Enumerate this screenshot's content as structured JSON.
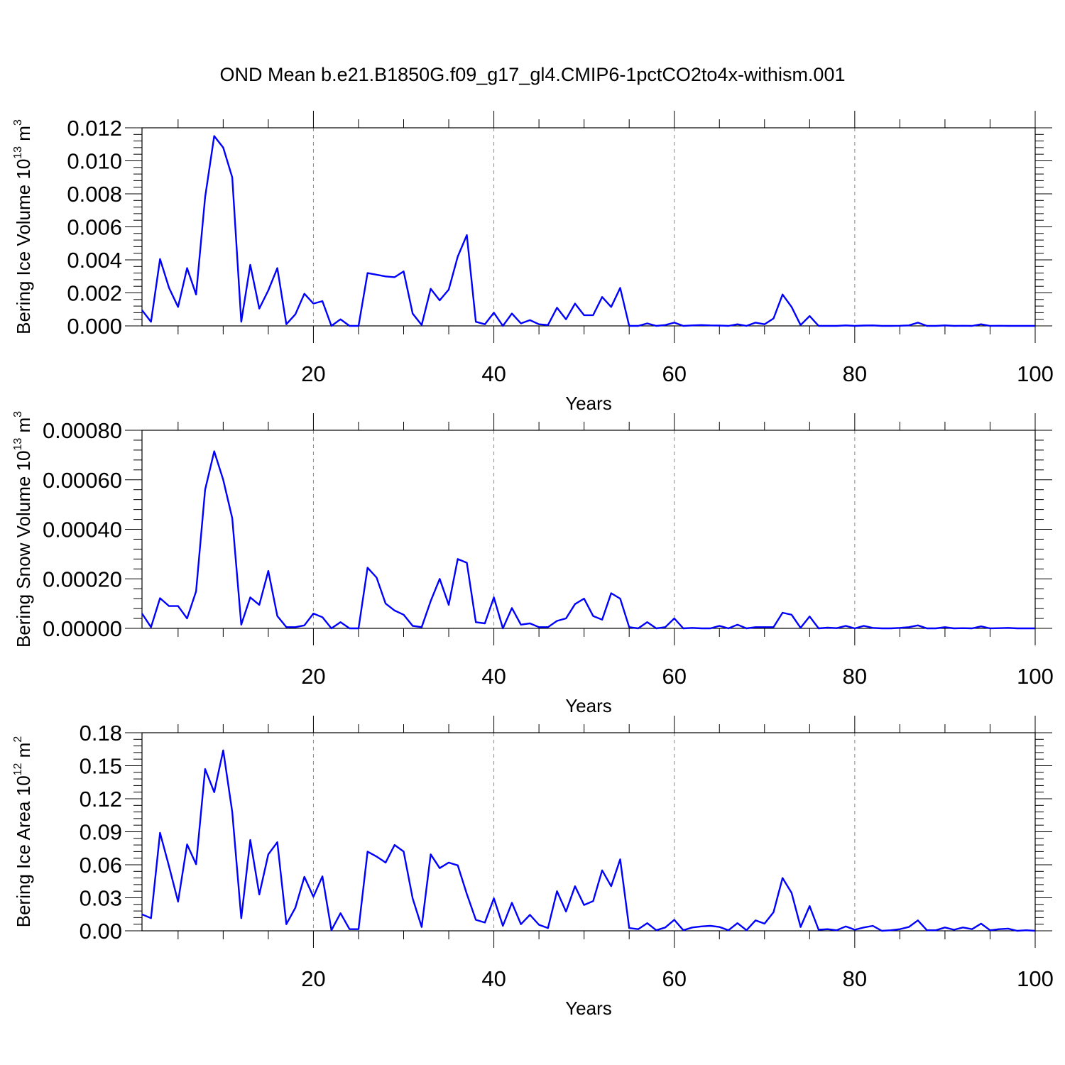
{
  "title": "OND Mean b.e21.B1850G.f09_g17_gl4.CMIP6-1pctCO2to4x-withism.001",
  "colors": {
    "line": "#0000ff",
    "axis": "#000000",
    "grid": "#888888",
    "background": "#ffffff"
  },
  "chart_data": [
    {
      "type": "line",
      "xlabel": "Years",
      "ylabel_text": "Bering Ice Volume 10",
      "ylabel_exp": "13",
      "ylabel_unit": " m",
      "ylabel_unit_exp": "3",
      "xlim": [
        1,
        100
      ],
      "ylim": [
        0,
        0.012
      ],
      "xticks": [
        20,
        40,
        60,
        80,
        100
      ],
      "xtick_labels": [
        "20",
        "40",
        "60",
        "80",
        "100"
      ],
      "yticks": [
        0,
        0.002,
        0.004,
        0.006,
        0.008,
        0.01,
        0.012
      ],
      "ytick_labels": [
        "0.000",
        "0.002",
        "0.004",
        "0.006",
        "0.008",
        "0.010",
        "0.012"
      ],
      "grid": "vertical dashed at major x ticks",
      "x": [
        1,
        2,
        3,
        4,
        5,
        6,
        7,
        8,
        9,
        10,
        11,
        12,
        13,
        14,
        15,
        16,
        17,
        18,
        19,
        20,
        21,
        22,
        23,
        24,
        25,
        26,
        27,
        28,
        29,
        30,
        31,
        32,
        33,
        34,
        35,
        36,
        37,
        38,
        39,
        40,
        41,
        42,
        43,
        44,
        45,
        46,
        47,
        48,
        49,
        50,
        51,
        52,
        53,
        54,
        55,
        56,
        57,
        58,
        59,
        60,
        61,
        62,
        63,
        64,
        65,
        66,
        67,
        68,
        69,
        70,
        71,
        72,
        73,
        74,
        75,
        76,
        77,
        78,
        79,
        80,
        81,
        82,
        83,
        84,
        85,
        86,
        87,
        88,
        89,
        90,
        91,
        92,
        93,
        94,
        95,
        96,
        97,
        98,
        99,
        100
      ],
      "values": [
        0.00095,
        0.00025,
        0.00405,
        0.0023,
        0.00115,
        0.0035,
        0.0019,
        0.0078,
        0.0115,
        0.0108,
        0.009,
        0.00025,
        0.0037,
        0.00105,
        0.00215,
        0.0035,
        0.0001,
        0.0007,
        0.00195,
        0.00135,
        0.0015,
        0.0,
        0.0004,
        0.0,
        0.0,
        0.0032,
        0.0031,
        0.003,
        0.00295,
        0.0033,
        0.00075,
        5e-05,
        0.00225,
        0.00155,
        0.0022,
        0.0042,
        0.0055,
        0.00025,
        0.0001,
        0.0008,
        0.0,
        0.00075,
        0.00015,
        0.00035,
        0.0001,
        5e-05,
        0.0011,
        0.0004,
        0.00135,
        0.00065,
        0.00065,
        0.00175,
        0.00115,
        0.0023,
        0.0,
        0.0,
        0.00015,
        0.0,
        5e-05,
        0.0002,
        0.0,
        3e-05,
        5e-05,
        3e-05,
        2e-05,
        0.0,
        0.0001,
        0.0,
        0.0002,
        0.0001,
        0.00045,
        0.0019,
        0.00115,
        5e-05,
        0.0006,
        0.0,
        0.0,
        0.0,
        3e-05,
        0.0,
        2e-05,
        3e-05,
        0.0,
        0.0,
        1e-05,
        3e-05,
        0.0002,
        0.0,
        0.0,
        3e-05,
        0.0,
        1e-05,
        0.0,
        0.0001,
        0.0,
        1e-05,
        0.0,
        0.0,
        0.0,
        0.0
      ]
    },
    {
      "type": "line",
      "xlabel": "Years",
      "ylabel_text": "Bering Snow Volume 10",
      "ylabel_exp": "13",
      "ylabel_unit": " m",
      "ylabel_unit_exp": "3",
      "xlim": [
        1,
        100
      ],
      "ylim": [
        0,
        0.0008
      ],
      "xticks": [
        20,
        40,
        60,
        80,
        100
      ],
      "xtick_labels": [
        "20",
        "40",
        "60",
        "80",
        "100"
      ],
      "yticks": [
        0,
        0.0002,
        0.0004,
        0.0006,
        0.0008
      ],
      "ytick_labels": [
        "0.00000",
        "0.00020",
        "0.00040",
        "0.00060",
        "0.00080"
      ],
      "grid": "vertical dashed at major x ticks",
      "x": [
        1,
        2,
        3,
        4,
        5,
        6,
        7,
        8,
        9,
        10,
        11,
        12,
        13,
        14,
        15,
        16,
        17,
        18,
        19,
        20,
        21,
        22,
        23,
        24,
        25,
        26,
        27,
        28,
        29,
        30,
        31,
        32,
        33,
        34,
        35,
        36,
        37,
        38,
        39,
        40,
        41,
        42,
        43,
        44,
        45,
        46,
        47,
        48,
        49,
        50,
        51,
        52,
        53,
        54,
        55,
        56,
        57,
        58,
        59,
        60,
        61,
        62,
        63,
        64,
        65,
        66,
        67,
        68,
        69,
        70,
        71,
        72,
        73,
        74,
        75,
        76,
        77,
        78,
        79,
        80,
        81,
        82,
        83,
        84,
        85,
        86,
        87,
        88,
        89,
        90,
        91,
        92,
        93,
        94,
        95,
        96,
        97,
        98,
        99,
        100
      ],
      "values": [
        6e-05,
        5e-06,
        0.000122,
        9e-05,
        9e-05,
        4e-05,
        0.00015,
        0.00056,
        0.000715,
        0.0006,
        0.000445,
        1.5e-05,
        0.000125,
        9.5e-05,
        0.000232,
        5e-05,
        5e-06,
        5e-06,
        1.2e-05,
        6e-05,
        4.5e-05,
        0.0,
        2.5e-05,
        0.0,
        0.0,
        0.000245,
        0.000205,
        0.0001,
        7.2e-05,
        5.5e-05,
        1e-05,
        5e-06,
        0.00011,
        0.0002,
        9.5e-05,
        0.00028,
        0.000265,
        2.5e-05,
        2e-05,
        0.000125,
        0.0,
        8.2e-05,
        1.5e-05,
        2e-05,
        5e-06,
        5e-06,
        3e-05,
        4e-05,
        9.8e-05,
        0.00012,
        5e-05,
        3.5e-05,
        0.000142,
        0.00012,
        5e-06,
        0.0,
        2.5e-05,
        0.0,
        5e-06,
        4e-05,
        0.0,
        2e-06,
        0.0,
        0.0,
        1e-05,
        0.0,
        1.5e-05,
        0.0,
        5e-06,
        5e-06,
        5e-06,
        6.3e-05,
        5.5e-05,
        2e-06,
        4.8e-05,
        0.0,
        3e-06,
        1e-06,
        1e-05,
        0.0,
        1e-05,
        2e-06,
        0.0,
        0.0,
        2e-06,
        5e-06,
        1.2e-05,
        0.0,
        0.0,
        5e-06,
        0.0,
        1e-06,
        0.0,
        8e-06,
        0.0,
        1e-06,
        2e-06,
        0.0,
        0.0,
        0.0
      ]
    },
    {
      "type": "line",
      "xlabel": "Years",
      "ylabel_text": "Bering Ice Area 10",
      "ylabel_exp": "12",
      "ylabel_unit": " m",
      "ylabel_unit_exp": "2",
      "xlim": [
        1,
        100
      ],
      "ylim": [
        0,
        0.18
      ],
      "xticks": [
        20,
        40,
        60,
        80,
        100
      ],
      "xtick_labels": [
        "20",
        "40",
        "60",
        "80",
        "100"
      ],
      "yticks": [
        0,
        0.03,
        0.06,
        0.09,
        0.12,
        0.15,
        0.18
      ],
      "ytick_labels": [
        "0.00",
        "0.03",
        "0.06",
        "0.09",
        "0.12",
        "0.15",
        "0.18"
      ],
      "grid": "vertical dashed at major x ticks",
      "x": [
        1,
        2,
        3,
        4,
        5,
        6,
        7,
        8,
        9,
        10,
        11,
        12,
        13,
        14,
        15,
        16,
        17,
        18,
        19,
        20,
        21,
        22,
        23,
        24,
        25,
        26,
        27,
        28,
        29,
        30,
        31,
        32,
        33,
        34,
        35,
        36,
        37,
        38,
        39,
        40,
        41,
        42,
        43,
        44,
        45,
        46,
        47,
        48,
        49,
        50,
        51,
        52,
        53,
        54,
        55,
        56,
        57,
        58,
        59,
        60,
        61,
        62,
        63,
        64,
        65,
        66,
        67,
        68,
        69,
        70,
        71,
        72,
        73,
        74,
        75,
        76,
        77,
        78,
        79,
        80,
        81,
        82,
        83,
        84,
        85,
        86,
        87,
        88,
        89,
        90,
        91,
        92,
        93,
        94,
        95,
        96,
        97,
        98,
        99,
        100
      ],
      "values": [
        0.015,
        0.0115,
        0.089,
        0.0585,
        0.0265,
        0.0785,
        0.0605,
        0.147,
        0.126,
        0.164,
        0.108,
        0.0115,
        0.0825,
        0.033,
        0.0695,
        0.0805,
        0.006,
        0.021,
        0.049,
        0.031,
        0.0495,
        0.0005,
        0.016,
        0.0015,
        0.0015,
        0.072,
        0.0675,
        0.062,
        0.078,
        0.072,
        0.0295,
        0.0035,
        0.0695,
        0.057,
        0.062,
        0.0595,
        0.0335,
        0.01,
        0.0075,
        0.0295,
        0.0045,
        0.0255,
        0.006,
        0.0145,
        0.0055,
        0.0025,
        0.036,
        0.0175,
        0.0405,
        0.0235,
        0.027,
        0.055,
        0.0405,
        0.065,
        0.0025,
        0.0015,
        0.007,
        0.0005,
        0.003,
        0.01,
        0.0005,
        0.003,
        0.004,
        0.0045,
        0.0035,
        0.0005,
        0.007,
        0.0005,
        0.0095,
        0.0065,
        0.017,
        0.048,
        0.0345,
        0.0035,
        0.0225,
        0.001,
        0.0015,
        0.0005,
        0.004,
        0.001,
        0.003,
        0.0045,
        0.0,
        0.0005,
        0.0015,
        0.0035,
        0.0095,
        0.0005,
        0.0005,
        0.003,
        0.001,
        0.003,
        0.0015,
        0.0065,
        0.0005,
        0.0015,
        0.002,
        0.0,
        0.0005,
        0.0
      ]
    }
  ]
}
